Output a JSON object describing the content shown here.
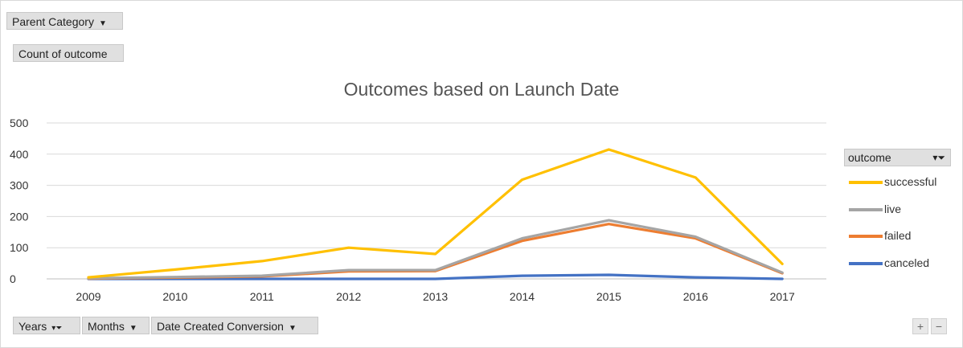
{
  "pivot_buttons": {
    "parent_category": "Parent Category",
    "count_of_outcome": "Count of outcome",
    "years": "Years",
    "months": "Months",
    "date_created": "Date Created Conversion"
  },
  "legend": {
    "header": "outcome"
  },
  "zoom": {
    "plus": "+",
    "minus": "−"
  },
  "chart_data": {
    "type": "line",
    "title": "Outcomes based on Launch Date",
    "x": [
      "2009",
      "2010",
      "2011",
      "2012",
      "2013",
      "2014",
      "2015",
      "2016",
      "2017"
    ],
    "ylim": [
      0,
      500
    ],
    "yticks": [
      0,
      100,
      200,
      300,
      400,
      500
    ],
    "grid": true,
    "legend_position": "right",
    "series": [
      {
        "name": "successful",
        "color": "#FFC000",
        "values": [
          5,
          30,
          57,
          100,
          80,
          318,
          415,
          325,
          48
        ]
      },
      {
        "name": "live",
        "color": "#A5A5A5",
        "values": [
          2,
          6,
          10,
          28,
          28,
          130,
          188,
          135,
          20
        ]
      },
      {
        "name": "failed",
        "color": "#ED7D31",
        "values": [
          1,
          4,
          8,
          24,
          25,
          122,
          176,
          130,
          18
        ]
      },
      {
        "name": "canceled",
        "color": "#4472C4",
        "values": [
          0,
          0,
          0,
          0,
          0,
          10,
          13,
          5,
          0
        ]
      }
    ]
  }
}
